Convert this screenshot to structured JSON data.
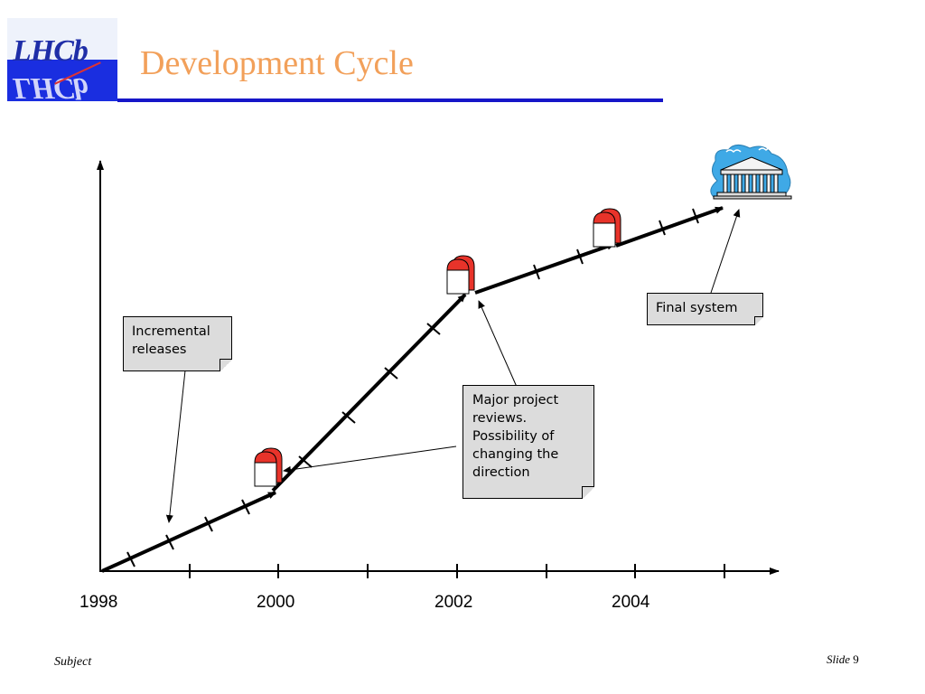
{
  "title": "Development Cycle",
  "logo": {
    "text": "LHCb",
    "icon": "lhcb-logo"
  },
  "callouts": {
    "incremental": [
      "Incremental",
      "releases"
    ],
    "reviews": [
      "Major project",
      "reviews.",
      "Possibility of",
      "changing the",
      "direction"
    ],
    "final": [
      "Final system"
    ]
  },
  "axis": {
    "years": [
      "1998",
      "2000",
      "2002",
      "2004"
    ]
  },
  "milestone_icon": "milestone-flag-icon",
  "final_icon": "greek-temple-icon",
  "footer": {
    "subject": "Subject",
    "slide_label": "Slide",
    "slide_number": "9"
  },
  "colors": {
    "title": "#f2a05a",
    "rule": "#1616c8",
    "milestone": "#e8332a",
    "callout_bg": "#dcdcdc"
  }
}
